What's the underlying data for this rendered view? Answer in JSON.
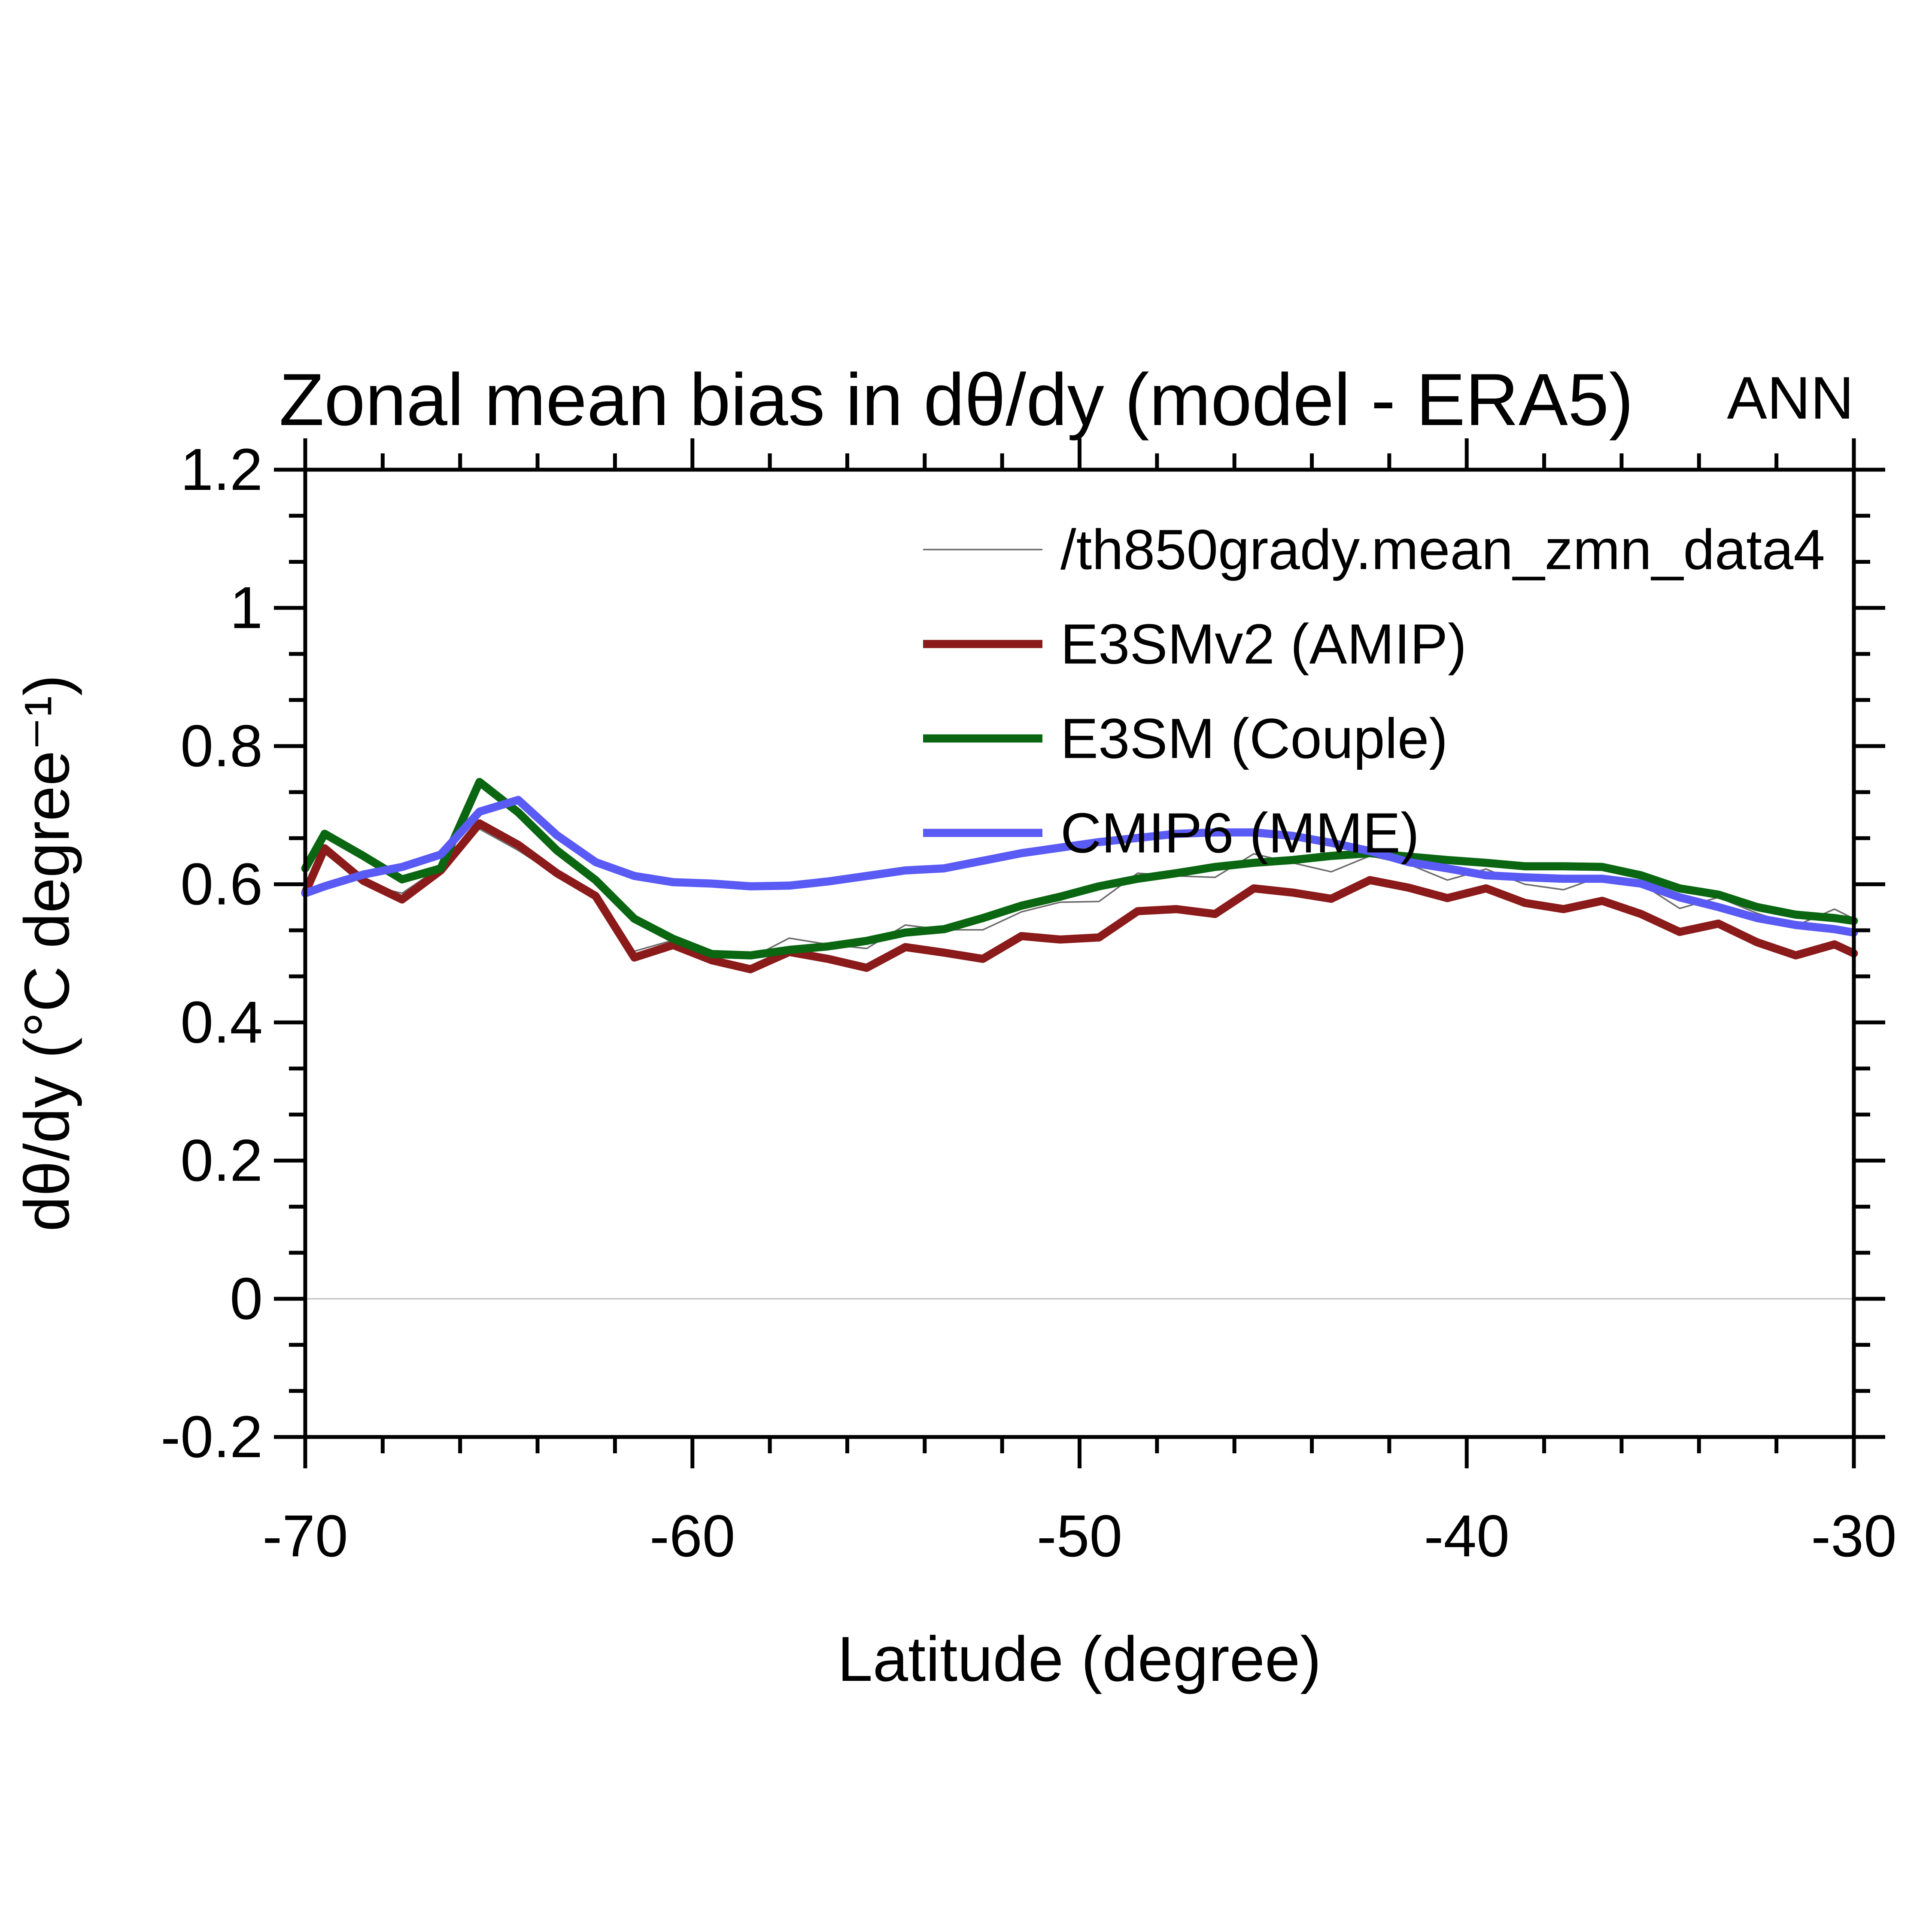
{
  "chart": {
    "title": "Zonal mean bias in dθ/dy (model - ERA5)",
    "season": "ANN",
    "xlabel": "Latitude (degree)",
    "ylabel": "dθ/dy (°C degree⁻¹)"
  },
  "chart_data": {
    "type": "line",
    "title": "Zonal mean bias in dθ/dy (model - ERA5)",
    "annotation": "ANN",
    "xlabel": "Latitude (degree)",
    "ylabel": "dθ/dy (°C degree⁻¹)",
    "xlim": [
      -70,
      -30
    ],
    "ylim": [
      -0.2,
      1.2
    ],
    "x_major_ticks": [
      -70,
      -60,
      -50,
      -40,
      -30
    ],
    "x_major_tick_labels": [
      "-70",
      "-60",
      "-50",
      "-40",
      "-30"
    ],
    "x_minor_step": 2,
    "y_major_ticks": [
      -0.2,
      0,
      0.2,
      0.4,
      0.6,
      0.8,
      1,
      1.2
    ],
    "y_major_tick_labels": [
      "-0.2",
      "0",
      "0.2",
      "0.4",
      "0.6",
      "0.8",
      "1",
      "1.2"
    ],
    "y_minors_per_major": 2,
    "grid": false,
    "zero_line": true,
    "zero_line_color": "#c0c0c0",
    "legend_position": "upper-center-inside",
    "x": [
      -70,
      -69.5,
      -68.5,
      -67.5,
      -66.5,
      -65.5,
      -64.5,
      -63.5,
      -62.5,
      -61.5,
      -60.5,
      -59.5,
      -58.5,
      -57.5,
      -56.5,
      -55.5,
      -54.5,
      -53.5,
      -52.5,
      -51.5,
      -50.5,
      -49.5,
      -48.5,
      -47.5,
      -46.5,
      -45.5,
      -44.5,
      -43.5,
      -42.5,
      -41.5,
      -40.5,
      -39.5,
      -38.5,
      -37.5,
      -36.5,
      -35.5,
      -34.5,
      -33.5,
      -32.5,
      -31.5,
      -30.5,
      -30
    ],
    "series": [
      {
        "name": "/th850grady.mean_zmn_data4",
        "color": "#6b6b6b",
        "line_width": 3.5,
        "values": [
          0.585,
          0.645,
          0.6,
          0.587,
          0.625,
          0.68,
          0.649,
          0.613,
          0.581,
          0.503,
          0.519,
          0.494,
          0.493,
          0.522,
          0.513,
          0.507,
          0.541,
          0.534,
          0.534,
          0.56,
          0.574,
          0.575,
          0.616,
          0.612,
          0.61,
          0.644,
          0.631,
          0.618,
          0.641,
          0.629,
          0.606,
          0.622,
          0.6,
          0.592,
          0.612,
          0.601,
          0.565,
          0.581,
          0.558,
          0.54,
          0.564,
          0.55
        ]
      },
      {
        "name": "E3SMv2 (AMIP)",
        "color": "#8b1a1a",
        "line_width": 19,
        "values": [
          0.588,
          0.652,
          0.605,
          0.578,
          0.62,
          0.688,
          0.657,
          0.616,
          0.583,
          0.494,
          0.512,
          0.49,
          0.477,
          0.502,
          0.492,
          0.479,
          0.509,
          0.501,
          0.492,
          0.525,
          0.52,
          0.523,
          0.561,
          0.564,
          0.557,
          0.594,
          0.588,
          0.579,
          0.606,
          0.595,
          0.58,
          0.594,
          0.573,
          0.564,
          0.576,
          0.557,
          0.531,
          0.543,
          0.516,
          0.497,
          0.513,
          0.5
        ]
      },
      {
        "name": "E3SM (Couple)",
        "color": "#0a6611",
        "line_width": 19,
        "values": [
          0.623,
          0.673,
          0.641,
          0.607,
          0.623,
          0.748,
          0.704,
          0.649,
          0.606,
          0.55,
          0.521,
          0.499,
          0.497,
          0.505,
          0.51,
          0.518,
          0.53,
          0.535,
          0.551,
          0.569,
          0.582,
          0.597,
          0.608,
          0.616,
          0.625,
          0.631,
          0.635,
          0.641,
          0.645,
          0.64,
          0.635,
          0.631,
          0.626,
          0.626,
          0.625,
          0.613,
          0.594,
          0.585,
          0.567,
          0.556,
          0.551,
          0.547
        ]
      },
      {
        "name": "CMIP6 (MME)",
        "color": "#5a5af5",
        "line_width": 19,
        "values": [
          0.587,
          0.597,
          0.614,
          0.625,
          0.643,
          0.705,
          0.722,
          0.671,
          0.632,
          0.612,
          0.603,
          0.601,
          0.597,
          0.598,
          0.604,
          0.612,
          0.62,
          0.623,
          0.634,
          0.645,
          0.653,
          0.661,
          0.667,
          0.673,
          0.675,
          0.675,
          0.67,
          0.66,
          0.648,
          0.632,
          0.623,
          0.613,
          0.61,
          0.608,
          0.608,
          0.601,
          0.581,
          0.567,
          0.551,
          0.541,
          0.535,
          0.53
        ]
      }
    ]
  }
}
